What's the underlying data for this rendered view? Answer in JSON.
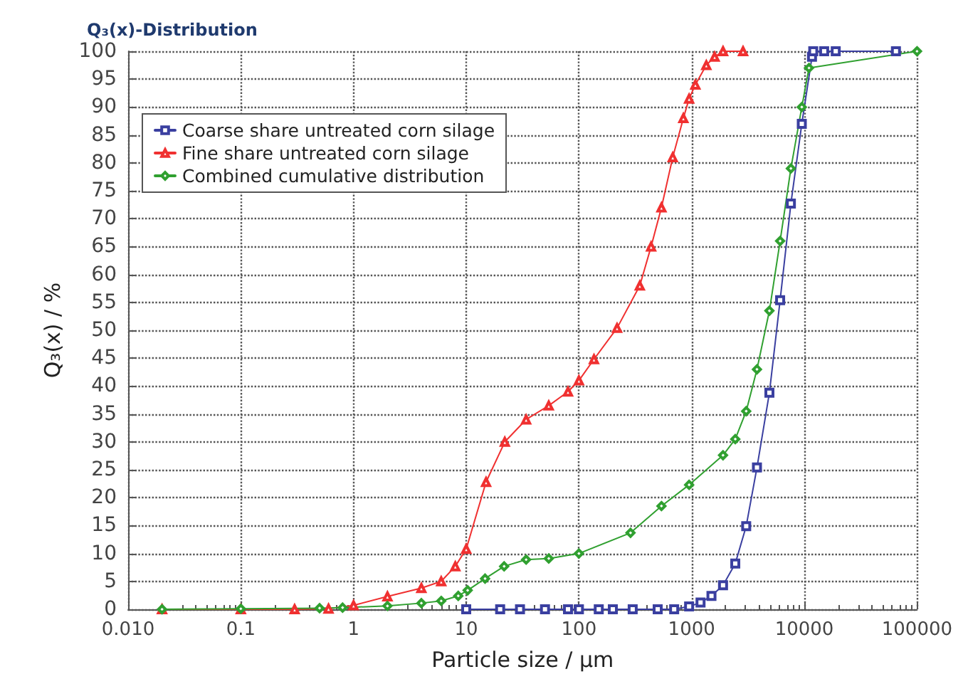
{
  "chart_data": {
    "type": "line",
    "title": "Q₃(x)-Distribution",
    "xlabel": "Particle size / µm",
    "ylabel": "Q₃(x) / %",
    "log": "x",
    "grid": true,
    "legend": "top left",
    "line_style": "solid",
    "xlim": [
      0.01,
      100000
    ],
    "xticks": [
      {
        "value": 0.01,
        "label": "0.010"
      },
      0.1,
      1,
      10,
      100,
      1000,
      10000,
      100000
    ],
    "ylim": [
      0,
      100
    ],
    "yticks": [
      0,
      5,
      10,
      15,
      20,
      25,
      30,
      35,
      40,
      45,
      50,
      55,
      60,
      65,
      70,
      75,
      80,
      85,
      90,
      95,
      100
    ],
    "series": [
      {
        "name": "Coarse share untreated corn silage",
        "color": "#3a3fa0",
        "marker": "square",
        "x": [
          10,
          20,
          30,
          50,
          80,
          100,
          150,
          200,
          300,
          500,
          700,
          950,
          1200,
          1500,
          1900,
          2440,
          3050,
          3800,
          4900,
          6100,
          7600,
          9500,
          11700,
          12000,
          15000,
          19000,
          65000
        ],
        "values": [
          0,
          0,
          0,
          0,
          0,
          0,
          0,
          0,
          0,
          0,
          0,
          0.5,
          1.2,
          2.4,
          4.3,
          8.2,
          14.9,
          25.4,
          38.8,
          55.4,
          72.7,
          87,
          99,
          100,
          100,
          100,
          100
        ]
      },
      {
        "name": "Fine share untreated corn silage",
        "color": "#f03030",
        "marker": "triangle",
        "x": [
          0.02,
          0.1,
          0.3,
          0.6,
          1,
          2,
          4,
          6,
          8,
          10,
          15,
          22,
          34,
          54,
          80,
          100,
          136,
          218,
          347,
          437,
          540,
          680,
          845,
          950,
          1080,
          1350,
          1600,
          1900,
          2860
        ],
        "values": [
          0,
          0,
          0,
          0.1,
          0.7,
          2.3,
          3.8,
          5,
          7.7,
          10.8,
          22.8,
          30,
          34,
          36.5,
          39,
          41,
          44.8,
          50.4,
          58,
          65,
          72,
          81,
          88,
          91.5,
          94,
          97.5,
          99,
          100,
          100
        ]
      },
      {
        "name": "Combined cumulative distribution",
        "color": "#30a030",
        "marker": "diamond",
        "x": [
          0.02,
          0.1,
          0.5,
          0.8,
          2,
          4,
          6,
          8.5,
          10.3,
          14.7,
          21.7,
          34,
          54,
          100,
          287,
          540,
          950,
          1900,
          2440,
          3050,
          3800,
          4900,
          6100,
          7600,
          9500,
          11000,
          100000
        ],
        "values": [
          0,
          0.1,
          0.2,
          0.3,
          0.6,
          1.1,
          1.5,
          2.4,
          3.4,
          5.5,
          7.7,
          8.9,
          9.1,
          10,
          13.7,
          18.5,
          22.3,
          27.6,
          30.5,
          35.5,
          43,
          53.5,
          66,
          79,
          90,
          97,
          100
        ]
      }
    ]
  }
}
